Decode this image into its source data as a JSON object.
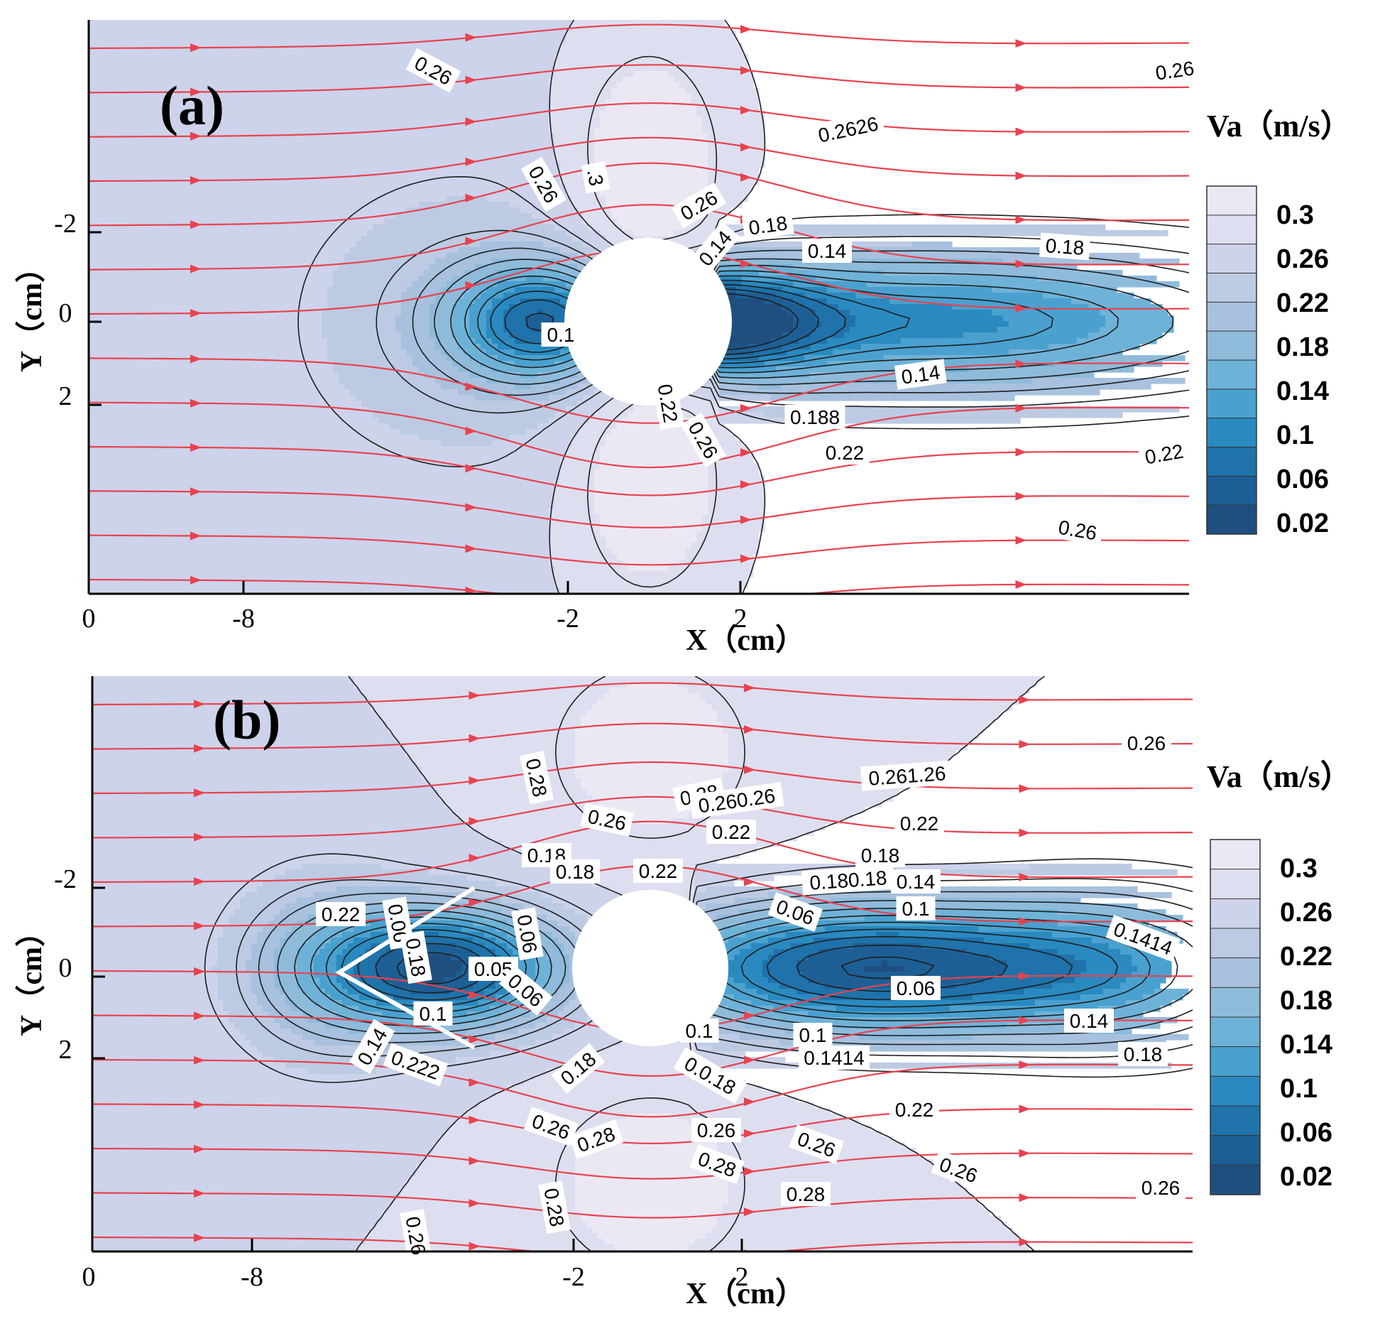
{
  "colors": {
    "levels": [
      "#1f4f7f",
      "#1d5f95",
      "#1f72aa",
      "#2a8ac0",
      "#4aa1cf",
      "#6fb2d8",
      "#8fbbdb",
      "#a7c1de",
      "#bccbe3",
      "#cdd3ea",
      "#dddff0",
      "#ebe8f4"
    ],
    "streamline": "#e8424f",
    "contour_line": "#1e1e1e",
    "cylinder": "#ffffff"
  },
  "chart_data": [
    {
      "type": "contour",
      "panel_label": "(a)",
      "xlabel": "X（cm）",
      "ylabel": "Y（cm）",
      "x_ticks": [
        "0",
        "-8",
        "-2",
        "2"
      ],
      "y_ticks": [
        "-2",
        "0",
        "2"
      ],
      "colorbar": {
        "title": "Va（m/s）",
        "levels": [
          "0.3",
          "0.26",
          "0.22",
          "0.18",
          "0.14",
          "0.1",
          "0.06",
          "0.02"
        ]
      },
      "contour_labels": [
        "0.26",
        "0.26",
        "0.2626",
        "0.26",
        ".3",
        "0.26",
        "0.18",
        "0.14",
        "0.14",
        "0.18",
        "0.1",
        "0.14",
        "0.22",
        "0.188",
        "0.26",
        "0.22",
        "0.22",
        "0.26"
      ]
    },
    {
      "type": "contour",
      "panel_label": "(b)",
      "xlabel": "X（cm）",
      "ylabel": "Y（cm）",
      "x_ticks": [
        "0",
        "-8",
        "-2",
        "2"
      ],
      "y_ticks": [
        "-2",
        "0",
        "2"
      ],
      "colorbar": {
        "title": "Va（m/s）",
        "levels": [
          "0.3",
          "0.26",
          "0.22",
          "0.18",
          "0.14",
          "0.1",
          "0.06",
          "0.02"
        ]
      },
      "contour_labels": [
        "0.26",
        "0.28",
        "0.261.26",
        "0.28",
        "0.260.26",
        "0.26",
        "0.22",
        "0.22",
        "0.18",
        "0.18",
        "0.18",
        "0.22",
        "0.180.18",
        "0.14",
        "0.22",
        "0.06",
        "0.06",
        "0.1",
        "0.06",
        "0.1414",
        "0.18",
        "0.05",
        "0.06",
        "0.06",
        "0.1",
        "0.14",
        "0.1",
        "0.1",
        "0.1414",
        "0.14",
        "0.222",
        "0.18",
        "0.0.18",
        "0.18",
        "0.22",
        "0.26",
        "0.28",
        "0.26",
        "0.26",
        "0.26",
        "0.28",
        "0.28",
        "0.26",
        "0.28",
        "0.26"
      ]
    }
  ]
}
